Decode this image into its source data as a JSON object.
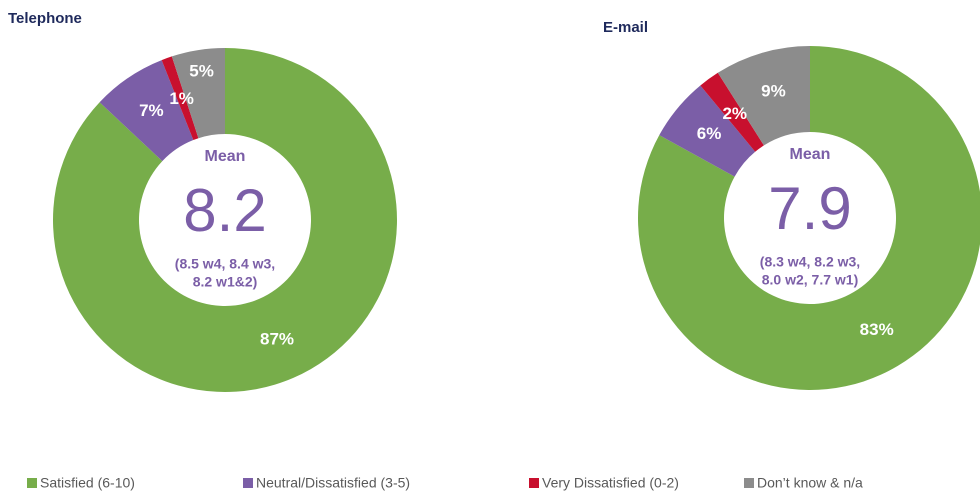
{
  "chart_data": [
    {
      "type": "pie",
      "title": "Telephone",
      "categories": [
        "Satisfied (6-10)",
        "Neutral/Dissatisfied (3-5)",
        "Very Dissatisfied (0-2)",
        "Don’t know & n/a"
      ],
      "values": [
        87,
        7,
        1,
        5
      ],
      "value_labels": [
        "87%",
        "7%",
        "1%",
        "5%"
      ],
      "colors": [
        "#77ad4a",
        "#7b5ea7",
        "#c8102e",
        "#8c8c8c"
      ],
      "mean_label": "Mean",
      "mean": 8.2,
      "mean_note": [
        "(8.5 w4, 8.4 w3,",
        "8.2 w1&2)"
      ]
    },
    {
      "type": "pie",
      "title": "E-mail",
      "categories": [
        "Satisfied (6-10)",
        "Neutral/Dissatisfied (3-5)",
        "Very Dissatisfied (0-2)",
        "Don’t know & n/a"
      ],
      "values": [
        83,
        6,
        2,
        9
      ],
      "value_labels": [
        "83%",
        "6%",
        "2%",
        "9%"
      ],
      "colors": [
        "#77ad4a",
        "#7b5ea7",
        "#c8102e",
        "#8c8c8c"
      ],
      "mean_label": "Mean",
      "mean": 7.9,
      "mean_note": [
        "(8.3 w4, 8.2 w3,",
        "8.0 w2, 7.7 w1)"
      ]
    }
  ]
}
